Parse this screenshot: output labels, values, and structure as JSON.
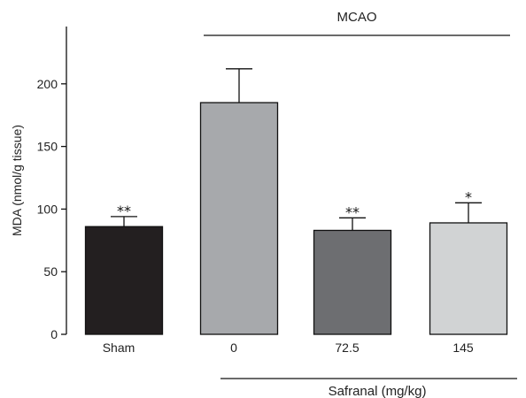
{
  "chart_data": {
    "type": "bar",
    "categories": [
      "Sham",
      "0",
      "72.5",
      "145"
    ],
    "values": [
      86,
      185,
      83,
      89
    ],
    "errors": [
      8,
      27,
      10,
      16
    ],
    "colors": [
      "#231f20",
      "#a7a9ac",
      "#6d6e71",
      "#d1d3d4"
    ],
    "significance": [
      "**",
      "",
      "**",
      "*"
    ],
    "ylabel": "MDA (nmol/g tissue)",
    "xlabel": "",
    "ylim": [
      0,
      240
    ],
    "yticks": [
      0,
      50,
      100,
      150,
      200
    ],
    "group_labels": {
      "top": "MCAO",
      "bottom": "Safranal (mg/kg)"
    },
    "grid": false,
    "legend": "none"
  }
}
